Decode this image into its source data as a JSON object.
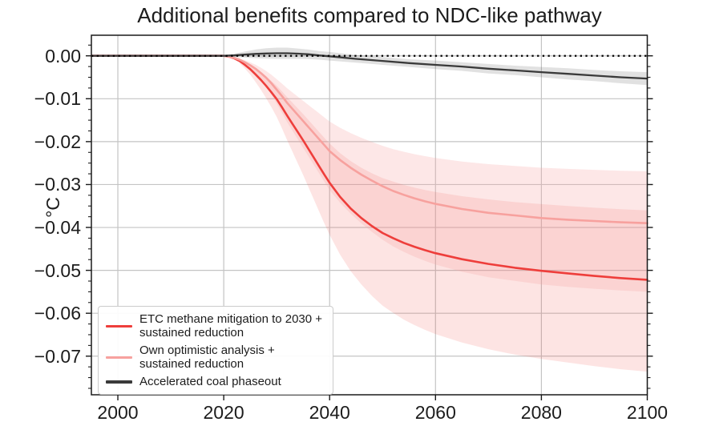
{
  "figure": {
    "title": "Additional benefits compared to NDC-like pathway",
    "ylabel": "°C"
  },
  "legend": {
    "items": [
      {
        "label": "ETC methane mitigation to 2030 +\nsustained reduction",
        "color": "#ee3e3b"
      },
      {
        "label": "Own optimistic analysis +\nsustained reduction",
        "color": "#f7a19e"
      },
      {
        "label": "Accelerated coal phaseout",
        "color": "#3a3a3a"
      }
    ]
  },
  "colors": {
    "grid": "#c4c4c4",
    "spine": "#1a1a1a",
    "tick": "#1a1a1a",
    "text": "#1c1c1c",
    "zero_line": "#000000",
    "legend_border": "#cccccc"
  },
  "chart_data": {
    "type": "line",
    "title": "Additional benefits compared to NDC-like pathway",
    "xlabel": "",
    "ylabel": "°C",
    "xlim": [
      1995,
      2100
    ],
    "ylim": [
      -0.079,
      0.0048
    ],
    "grid": true,
    "legend_position": "lower left",
    "zero_reference_line": {
      "value": 0.0,
      "style": "dotted",
      "color": "#000000"
    },
    "x_ticks": {
      "values": [
        2000,
        2020,
        2040,
        2060,
        2080,
        2100
      ],
      "labels": [
        "2000",
        "2020",
        "2040",
        "2060",
        "2080",
        "2100"
      ]
    },
    "y_ticks": {
      "values": [
        0,
        -0.01,
        -0.02,
        -0.03,
        -0.04,
        -0.05,
        -0.06,
        -0.07
      ],
      "labels": [
        "0.00",
        "−0.01",
        "−0.02",
        "−0.03",
        "−0.04",
        "−0.05",
        "−0.06",
        "−0.07"
      ]
    },
    "y_minor_tick_step": 0.0025,
    "series": [
      {
        "name": "ETC methane mitigation to 2030 + sustained reduction",
        "color": "#ee3e3b",
        "line_width": 2.6,
        "band_fill": "rgba(238,62,59,0.14)",
        "band_scale": {
          "upper": 0.69,
          "lower": 1.41
        },
        "x": [
          1995,
          2000,
          2005,
          2010,
          2015,
          2020,
          2021,
          2022,
          2023,
          2024,
          2025,
          2026,
          2027,
          2028,
          2029,
          2030,
          2031,
          2032,
          2033,
          2034,
          2035,
          2036,
          2037,
          2038,
          2039,
          2040,
          2042,
          2044,
          2046,
          2048,
          2050,
          2052,
          2054,
          2056,
          2058,
          2060,
          2065,
          2070,
          2075,
          2080,
          2085,
          2090,
          2095,
          2100
        ],
        "values": [
          0,
          0,
          0,
          0,
          0,
          0,
          -0.0002,
          -0.0006,
          -0.0012,
          -0.0021,
          -0.0031,
          -0.0043,
          -0.0056,
          -0.007,
          -0.0085,
          -0.0101,
          -0.012,
          -0.014,
          -0.0159,
          -0.0178,
          -0.0197,
          -0.0217,
          -0.0237,
          -0.0257,
          -0.0277,
          -0.0296,
          -0.0329,
          -0.0356,
          -0.0378,
          -0.0397,
          -0.0413,
          -0.0425,
          -0.0436,
          -0.0445,
          -0.0453,
          -0.046,
          -0.0474,
          -0.0485,
          -0.0494,
          -0.0501,
          -0.0507,
          -0.0513,
          -0.0518,
          -0.0522
        ]
      },
      {
        "name": "Own optimistic analysis + sustained reduction",
        "color": "#f7a19e",
        "line_width": 2.6,
        "band_fill": "rgba(247,161,158,0.25)",
        "band_scale": {
          "upper": 0.69,
          "lower": 1.41
        },
        "x": [
          1995,
          2000,
          2005,
          2010,
          2015,
          2020,
          2021,
          2022,
          2023,
          2024,
          2025,
          2026,
          2027,
          2028,
          2029,
          2030,
          2031,
          2032,
          2033,
          2034,
          2035,
          2036,
          2037,
          2038,
          2039,
          2040,
          2042,
          2044,
          2046,
          2048,
          2050,
          2052,
          2054,
          2056,
          2058,
          2060,
          2065,
          2070,
          2075,
          2080,
          2085,
          2090,
          2095,
          2100
        ],
        "values": [
          0,
          0,
          0,
          0,
          0,
          0,
          -0.0002,
          -0.0005,
          -0.0009,
          -0.0015,
          -0.0022,
          -0.003,
          -0.004,
          -0.0051,
          -0.0064,
          -0.0079,
          -0.0094,
          -0.011,
          -0.0124,
          -0.0138,
          -0.0152,
          -0.0166,
          -0.018,
          -0.0194,
          -0.0208,
          -0.0222,
          -0.0243,
          -0.0261,
          -0.0277,
          -0.0291,
          -0.0304,
          -0.0315,
          -0.0324,
          -0.0332,
          -0.0339,
          -0.0345,
          -0.0357,
          -0.0366,
          -0.0372,
          -0.0378,
          -0.0382,
          -0.0385,
          -0.0388,
          -0.039
        ]
      },
      {
        "name": "Accelerated coal phaseout",
        "color": "#3a3a3a",
        "line_width": 2.3,
        "band_fill": "rgba(80,80,80,0.17)",
        "band_delta": [
          0,
          0,
          0,
          0,
          0,
          0.0001,
          0.0004,
          0.0007,
          0.001,
          0.0012,
          0.0013,
          0.0013,
          0.0012,
          0.0011,
          0.001,
          0.001,
          0.0009,
          0.0009,
          0.0009,
          0.001,
          0.001,
          0.0011,
          0.0011,
          0.0012,
          0.0013,
          0.0013,
          0.0014,
          0.0015
        ],
        "x": [
          1995,
          2000,
          2005,
          2010,
          2015,
          2020,
          2022,
          2024,
          2026,
          2028,
          2030,
          2032,
          2034,
          2036,
          2038,
          2040,
          2045,
          2050,
          2055,
          2060,
          2065,
          2070,
          2075,
          2080,
          2085,
          2090,
          2095,
          2100
        ],
        "values": [
          0,
          0,
          0,
          0,
          0,
          0,
          0.0001,
          0.0003,
          0.00045,
          0.00055,
          0.0006,
          0.0006,
          0.0005,
          0.00035,
          0.0001,
          -0.0001,
          -0.0007,
          -0.0012,
          -0.0017,
          -0.0021,
          -0.0025,
          -0.003,
          -0.0034,
          -0.0038,
          -0.0042,
          -0.0046,
          -0.005,
          -0.0053
        ]
      }
    ]
  }
}
